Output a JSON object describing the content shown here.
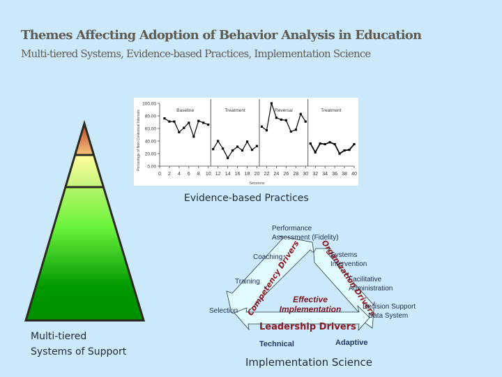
{
  "header": {
    "title": "Themes Affecting Adoption of Behavior Analysis in Education",
    "subtitle": "Multi-tiered Systems, Evidence-based Practices, Implementation Science"
  },
  "pyramid": {
    "label_line1": "Multi-tiered",
    "label_line2": "Systems of Support",
    "tiers": [
      {
        "name": "tier-3",
        "colors": [
          "#c0442a",
          "#f6c47a"
        ]
      },
      {
        "name": "tier-2",
        "colors": [
          "#fefe9c",
          "#c6f47a"
        ]
      },
      {
        "name": "tier-1",
        "colors": [
          "#8cf35c",
          "#009400"
        ]
      }
    ]
  },
  "evidence_section": {
    "label": "Evidence-based Practices"
  },
  "chart_data": {
    "type": "line",
    "title": "",
    "xlabel": "Sessions",
    "ylabel": "Percentage of Non-Contextual Intervals",
    "xlim": [
      0,
      40
    ],
    "ylim": [
      0,
      100
    ],
    "x_ticks": [
      "0",
      "2",
      "4",
      "6",
      "8",
      "10",
      "12",
      "14",
      "16",
      "18",
      "20",
      "22",
      "24",
      "26",
      "28",
      "30",
      "32",
      "34",
      "36",
      "38",
      "40"
    ],
    "y_ticks": [
      "0.00",
      "20.00",
      "40.00",
      "60.00",
      "80.00",
      "100.00"
    ],
    "phase_labels": [
      "Baseline",
      "Treatment",
      "Reversal",
      "Treatment"
    ],
    "phase_lines_x": [
      10.5,
      20.5,
      30.5
    ],
    "grid": false,
    "series": [
      {
        "name": "Baseline",
        "x": [
          1,
          2,
          3,
          4,
          5,
          6,
          7,
          8,
          9,
          10
        ],
        "values": [
          76,
          71,
          71,
          54,
          61,
          69,
          47,
          72,
          69,
          66
        ]
      },
      {
        "name": "Treatment",
        "x": [
          11,
          12,
          13,
          14,
          15,
          16,
          17,
          18,
          19,
          20
        ],
        "values": [
          27,
          40,
          28,
          13,
          25,
          31,
          25,
          39,
          26,
          32
        ]
      },
      {
        "name": "Reversal",
        "x": [
          21,
          22,
          23,
          24,
          25,
          26,
          27,
          28,
          29,
          30
        ],
        "values": [
          63,
          57,
          100,
          77,
          74,
          73,
          55,
          58,
          83,
          71
        ]
      },
      {
        "name": "Treatment 2",
        "x": [
          31,
          32,
          33,
          34,
          35,
          36,
          37,
          38,
          39,
          40
        ],
        "values": [
          36,
          22,
          36,
          35,
          38,
          35,
          20,
          25,
          26,
          35
        ]
      }
    ]
  },
  "implementation": {
    "center_line1": "Effective",
    "center_line2": "Implementation",
    "competency_label": "Competency Drivers",
    "organization_label": "Organization Drivers",
    "leadership_label": "Leadership Drivers",
    "top_line1": "Performance",
    "top_line2": "Assessment (Fidelity)",
    "left_items": [
      "Coaching",
      "Training",
      "Selection"
    ],
    "right_items": [
      {
        "line1": "Systems",
        "line2": "Intervention"
      },
      {
        "line1": "Facilitative",
        "line2": "Administration"
      },
      {
        "line1": "Decision Support",
        "line2": "Data System"
      }
    ],
    "technical": "Technical",
    "adaptive": "Adaptive",
    "footer": "Implementation Science",
    "colors": {
      "arrow_fill": "#e2fbff",
      "driver_text": "#8b1a24",
      "leader_text": "#8b1a24",
      "bottom_text": "#1b3b66"
    }
  }
}
